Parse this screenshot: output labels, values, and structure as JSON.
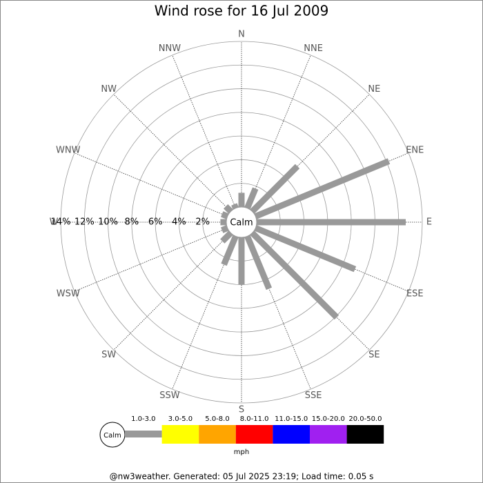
{
  "chart_data": {
    "type": "wind_rose",
    "title": "Wind rose for 16 Jul 2009",
    "directions": [
      "N",
      "NNE",
      "NE",
      "ENE",
      "E",
      "ESE",
      "SE",
      "SSE",
      "S",
      "SSW",
      "SW",
      "WSW",
      "W",
      "WNW",
      "NW",
      "NNW"
    ],
    "series": [
      {
        "name": "1.0-3.0",
        "color": "#999999",
        "values": [
          1.2,
          1.8,
          5.4,
          12.2,
          12.6,
          9.1,
          10.1,
          4.8,
          4.0,
          2.6,
          1.0,
          0.5,
          0.5,
          0.5,
          0.6,
          0.35
        ]
      }
    ],
    "legend": [
      {
        "name": "3.0-5.0",
        "color": "#ffff00"
      },
      {
        "name": "5.0-8.0",
        "color": "#ffa500"
      },
      {
        "name": "8.0-11.0",
        "color": "#ff0000"
      },
      {
        "name": "11.0-15.0",
        "color": "#0000ff"
      },
      {
        "name": "15.0-20.0",
        "color": "#a020f0"
      },
      {
        "name": "20.0-50.0",
        "color": "#000000"
      }
    ],
    "calm_label": "Calm",
    "unit": "mph",
    "rlim": [
      0,
      14
    ],
    "rticks": [
      {
        "value": 2,
        "label": "2%"
      },
      {
        "value": 4,
        "label": "4%"
      },
      {
        "value": 6,
        "label": "6%"
      },
      {
        "value": 8,
        "label": "8%"
      },
      {
        "value": 10,
        "label": "10%"
      },
      {
        "value": 12,
        "label": "12%"
      },
      {
        "value": 14,
        "label": "14%"
      }
    ],
    "footer": "@nw3weather. Generated: 05 Jul 2025 23:19; Load time: 0.05 s"
  }
}
